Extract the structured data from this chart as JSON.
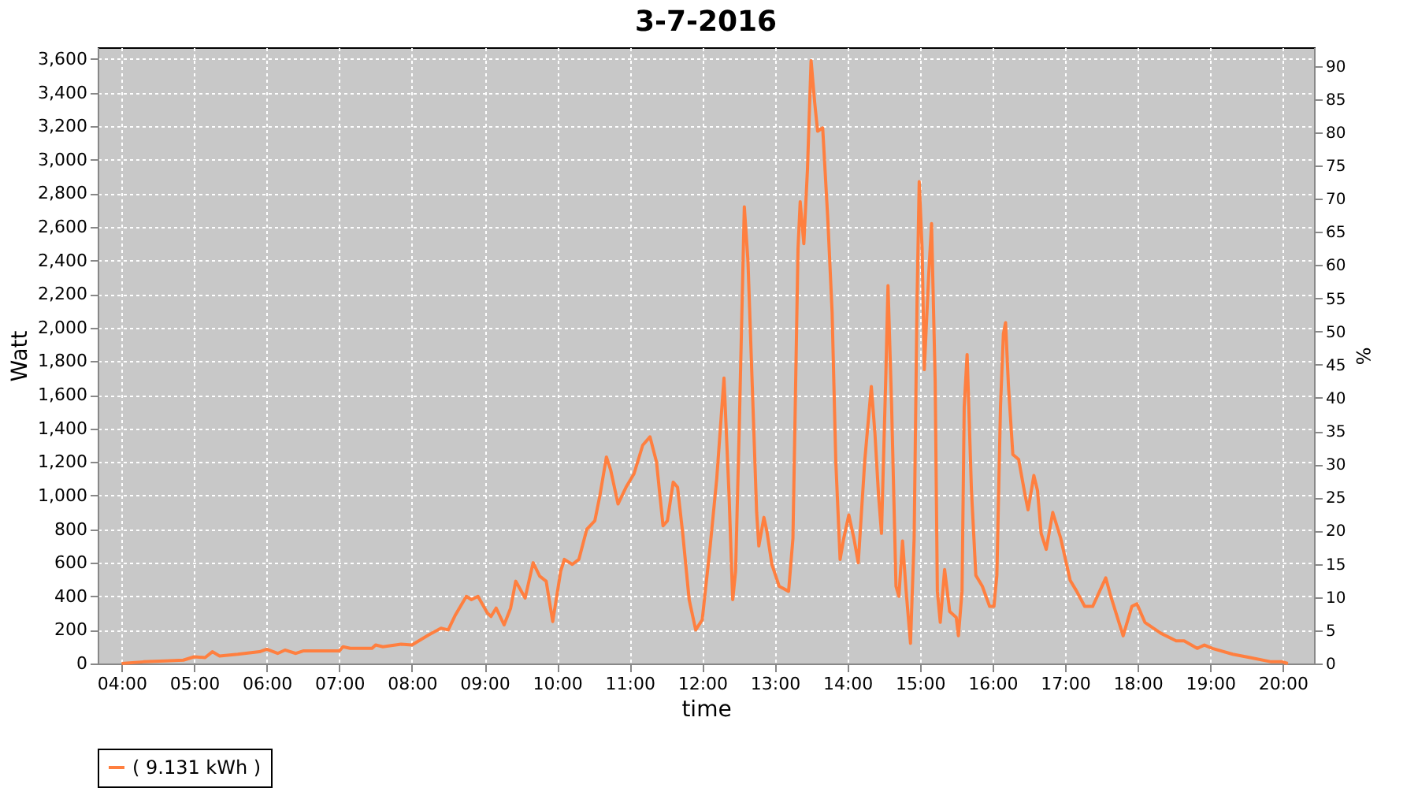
{
  "chart_data": {
    "type": "line",
    "title": "3-7-2016",
    "xlabel": "time",
    "ylabel": "Watt",
    "y2label": "%",
    "xlim": [
      3.67,
      20.43
    ],
    "xticks": [
      {
        "value": 4,
        "label": "04:00"
      },
      {
        "value": 5,
        "label": "05:00"
      },
      {
        "value": 6,
        "label": "06:00"
      },
      {
        "value": 7,
        "label": "07:00"
      },
      {
        "value": 8,
        "label": "08:00"
      },
      {
        "value": 9,
        "label": "09:00"
      },
      {
        "value": 10,
        "label": "10:00"
      },
      {
        "value": 11,
        "label": "11:00"
      },
      {
        "value": 12,
        "label": "12:00"
      },
      {
        "value": 13,
        "label": "13:00"
      },
      {
        "value": 14,
        "label": "14:00"
      },
      {
        "value": 15,
        "label": "15:00"
      },
      {
        "value": 16,
        "label": "16:00"
      },
      {
        "value": 17,
        "label": "17:00"
      },
      {
        "value": 18,
        "label": "18:00"
      },
      {
        "value": 19,
        "label": "19:00"
      },
      {
        "value": 20,
        "label": "20:00"
      }
    ],
    "ylim": [
      0,
      3670
    ],
    "yticks": [
      0,
      200,
      400,
      600,
      800,
      {
        "value": 1000,
        "label": "1,000"
      },
      {
        "value": 1200,
        "label": "1,200"
      },
      {
        "value": 1400,
        "label": "1,400"
      },
      {
        "value": 1600,
        "label": "1,600"
      },
      {
        "value": 1800,
        "label": "1,800"
      },
      {
        "value": 2000,
        "label": "2,000"
      },
      {
        "value": 2200,
        "label": "2,200"
      },
      {
        "value": 2400,
        "label": "2,400"
      },
      {
        "value": 2600,
        "label": "2,600"
      },
      {
        "value": 2800,
        "label": "2,800"
      },
      {
        "value": 3000,
        "label": "3,000"
      },
      {
        "value": 3200,
        "label": "3,200"
      },
      {
        "value": 3400,
        "label": "3,400"
      },
      {
        "value": 3600,
        "label": "3,600"
      }
    ],
    "y2lim": [
      0,
      92.8
    ],
    "y2ticks": [
      0,
      5,
      10,
      15,
      20,
      25,
      30,
      35,
      40,
      45,
      50,
      55,
      60,
      65,
      70,
      75,
      80,
      85,
      90
    ],
    "grid": true,
    "legend": "bottom",
    "line_style": "solid",
    "series": [
      {
        "name": "( 9.131 kWh )",
        "color": "#ff7f3f",
        "x": [
          4.0,
          4.3,
          4.6,
          4.85,
          5.0,
          5.15,
          5.25,
          5.35,
          5.6,
          5.9,
          6.0,
          6.15,
          6.25,
          6.4,
          6.5,
          7.0,
          7.05,
          7.15,
          7.45,
          7.5,
          7.6,
          7.85,
          8.0,
          8.23,
          8.4,
          8.5,
          8.6,
          8.75,
          8.82,
          8.91,
          9.04,
          9.09,
          9.16,
          9.27,
          9.36,
          9.43,
          9.56,
          9.67,
          9.76,
          9.85,
          9.94,
          10.05,
          10.1,
          10.21,
          10.3,
          10.41,
          10.52,
          10.59,
          10.68,
          10.74,
          10.84,
          10.95,
          11.06,
          11.18,
          11.28,
          11.37,
          11.46,
          11.52,
          11.6,
          11.66,
          11.73,
          11.82,
          11.91,
          12.0,
          12.11,
          12.2,
          12.25,
          12.3,
          12.37,
          12.42,
          12.46,
          12.51,
          12.58,
          12.63,
          12.69,
          12.75,
          12.78,
          12.85,
          12.89,
          12.96,
          13.06,
          13.19,
          13.25,
          13.32,
          13.35,
          13.4,
          13.45,
          13.5,
          13.55,
          13.59,
          13.66,
          13.73,
          13.79,
          13.84,
          13.9,
          13.95,
          14.02,
          14.09,
          14.15,
          14.24,
          14.33,
          14.38,
          14.43,
          14.47,
          14.53,
          14.56,
          14.61,
          14.67,
          14.71,
          14.76,
          14.81,
          14.87,
          14.92,
          14.96,
          14.99,
          15.03,
          15.06,
          15.12,
          15.16,
          15.21,
          15.24,
          15.28,
          15.34,
          15.41,
          15.5,
          15.53,
          15.58,
          15.61,
          15.65,
          15.71,
          15.77,
          15.86,
          15.96,
          16.02,
          16.06,
          16.11,
          16.15,
          16.18,
          16.22,
          16.28,
          16.36,
          16.45,
          16.49,
          16.57,
          16.62,
          16.67,
          16.74,
          16.83,
          16.94,
          17.07,
          17.16,
          17.27,
          17.38,
          17.56,
          17.63,
          17.8,
          17.92,
          17.99,
          18.1,
          18.32,
          18.53,
          18.64,
          18.82,
          18.92,
          19.03,
          19.31,
          19.55,
          19.84,
          19.99,
          20.07
        ],
        "values": [
          0,
          10,
          15,
          20,
          40,
          35,
          70,
          45,
          55,
          70,
          85,
          60,
          80,
          60,
          75,
          75,
          100,
          90,
          90,
          110,
          100,
          115,
          110,
          170,
          210,
          200,
          290,
          400,
          380,
          400,
          300,
          280,
          330,
          230,
          330,
          490,
          390,
          600,
          520,
          490,
          250,
          550,
          620,
          590,
          620,
          800,
          850,
          1000,
          1230,
          1150,
          950,
          1050,
          1130,
          1300,
          1350,
          1200,
          820,
          850,
          1080,
          1050,
          780,
          380,
          200,
          260,
          700,
          1100,
          1400,
          1700,
          1000,
          380,
          550,
          1400,
          2720,
          2400,
          1650,
          900,
          700,
          870,
          790,
          590,
          460,
          430,
          745,
          2470,
          2750,
          2500,
          2940,
          3590,
          3340,
          3170,
          3190,
          2650,
          2090,
          1210,
          620,
          745,
          885,
          745,
          600,
          1210,
          1650,
          1370,
          1000,
          775,
          1715,
          2250,
          1530,
          460,
          400,
          730,
          430,
          120,
          745,
          2150,
          2870,
          2470,
          1750,
          2310,
          2620,
          1680,
          430,
          245,
          560,
          310,
          275,
          165,
          430,
          1530,
          1840,
          1030,
          525,
          460,
          340,
          340,
          525,
          1530,
          1965,
          2030,
          1650,
          1245,
          1215,
          1000,
          915,
          1120,
          1030,
          775,
          680,
          900,
          745,
          495,
          430,
          340,
          340,
          510,
          400,
          165,
          340,
          355,
          245,
          180,
          135,
          135,
          90,
          110,
          90,
          55,
          35,
          10,
          10,
          0
        ]
      }
    ]
  }
}
